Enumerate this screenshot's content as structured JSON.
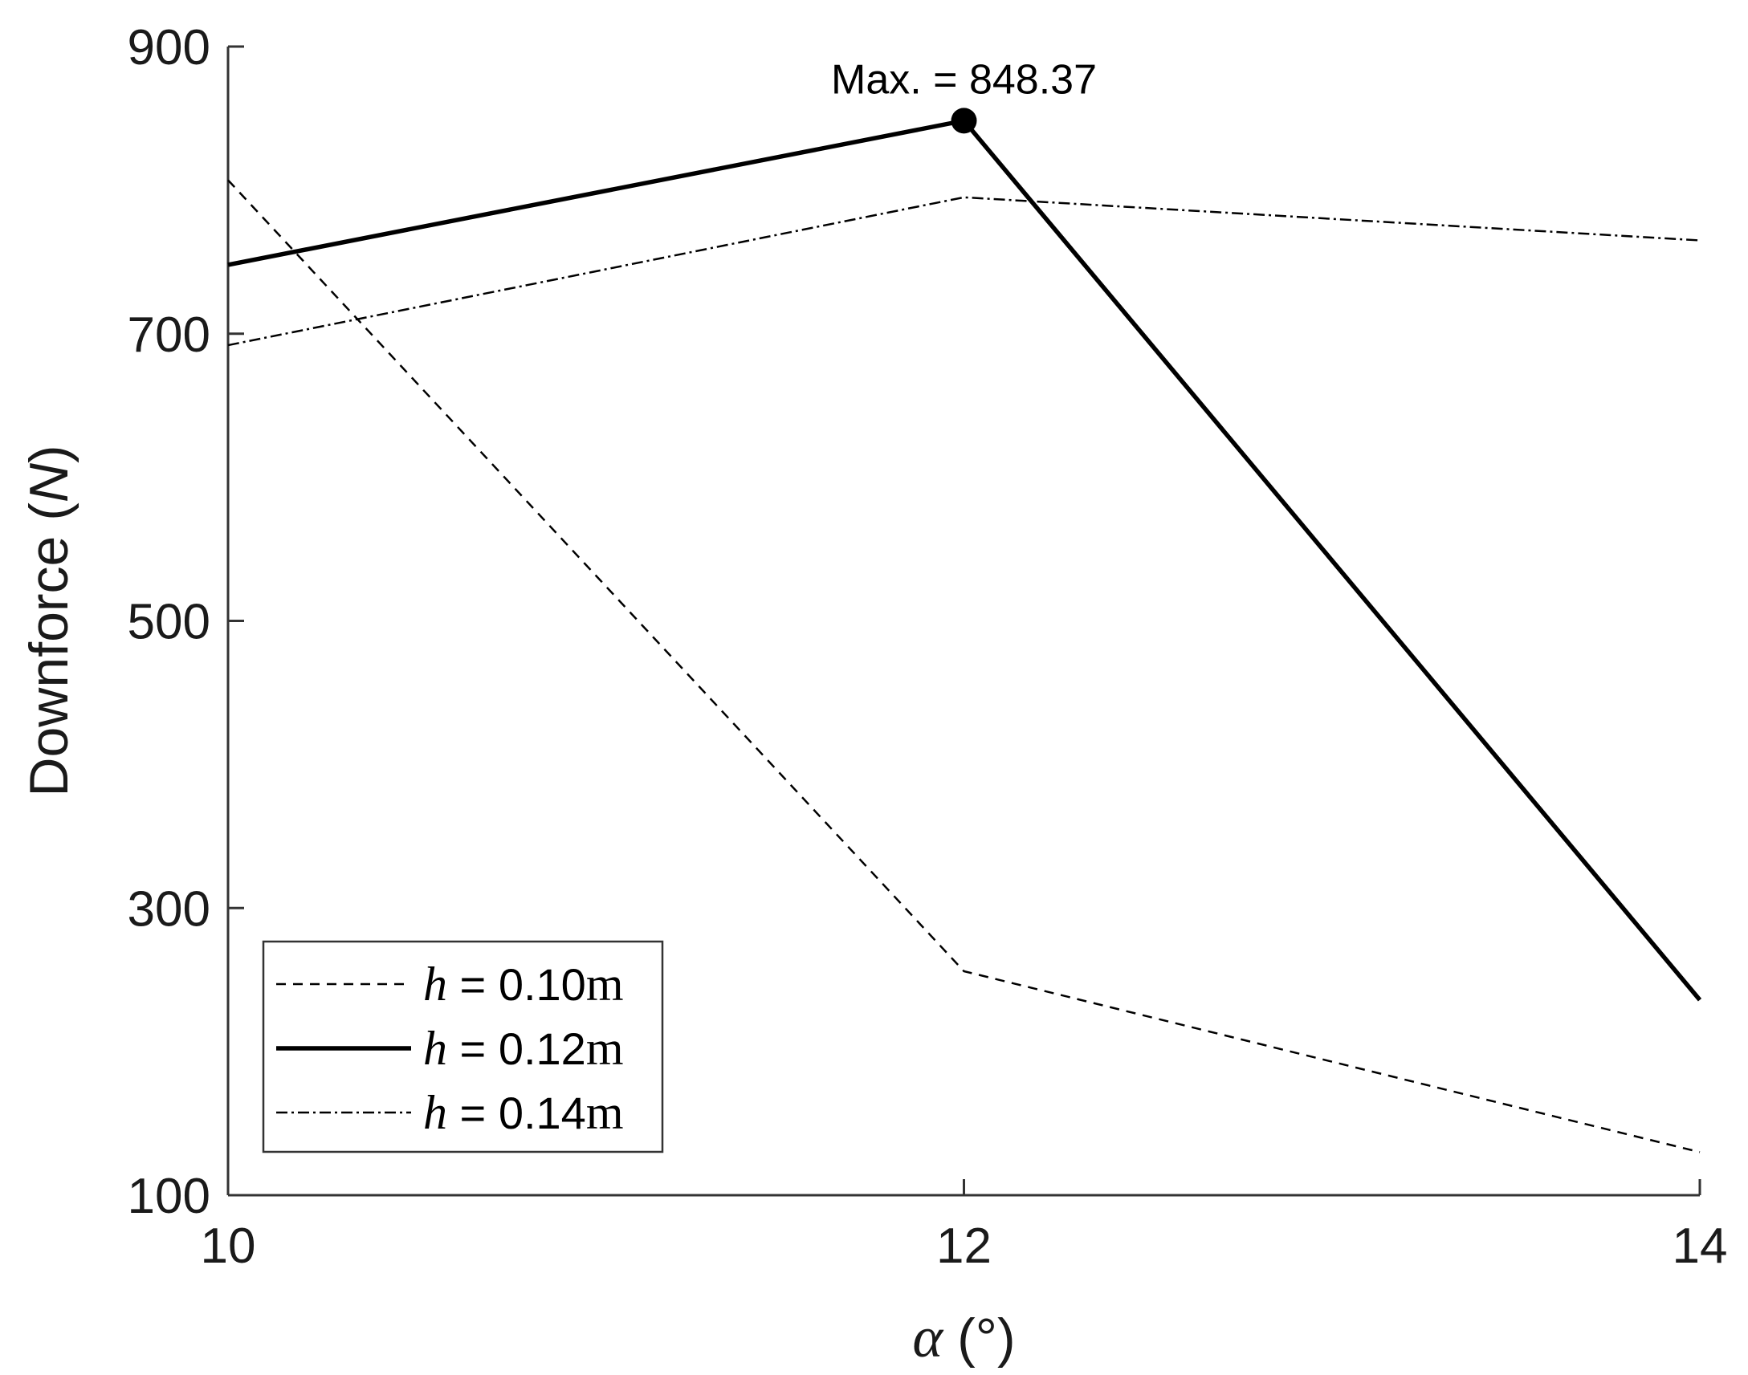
{
  "chart_data": {
    "type": "line",
    "title": "",
    "xlabel_symbol": "α",
    "xlabel_unit": "(°)",
    "ylabel_prefix": "Downforce (",
    "ylabel_unit": "N",
    "ylabel_suffix": ")",
    "x": [
      10,
      12,
      14
    ],
    "xlim": [
      10,
      14
    ],
    "ylim": [
      100,
      900
    ],
    "xticks": [
      "10",
      "12",
      "14"
    ],
    "yticks": [
      "100",
      "300",
      "500",
      "700",
      "900"
    ],
    "grid": false,
    "legend_position": "bottom-left",
    "series": [
      {
        "name_symbol": "h",
        "name_eq": " = 0.10",
        "name_unit": "m",
        "values": [
          807,
          256,
          130
        ],
        "style": "dashed",
        "color": "#000000"
      },
      {
        "name_symbol": "h",
        "name_eq": " = 0.12",
        "name_unit": "m",
        "values": [
          748,
          848.37,
          236
        ],
        "style": "solid",
        "color": "#000000"
      },
      {
        "name_symbol": "h",
        "name_eq": " = 0.14",
        "name_unit": "m",
        "values": [
          692,
          795,
          765
        ],
        "style": "dashdot",
        "color": "#000000"
      }
    ],
    "annotation": {
      "text": "Max. = 848.37",
      "x": 12,
      "y": 848.37
    }
  }
}
